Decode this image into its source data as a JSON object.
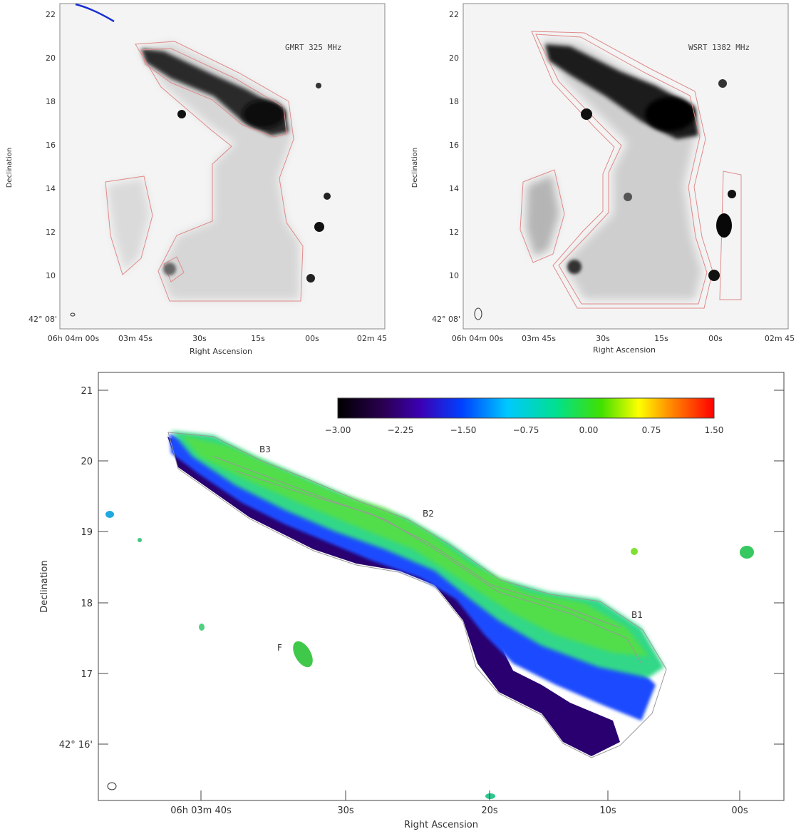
{
  "panels": {
    "gmrt": {
      "label": "GMRT 325 MHz",
      "ylabel": "Declination",
      "xlabel": "Right Ascension",
      "y_ticks": [
        "22",
        "20",
        "18",
        "16",
        "14",
        "12",
        "10"
      ],
      "y_origin": "42° 08'",
      "x_ticks": [
        "06h 04m 00s",
        "03m 45s",
        "30s",
        "15s",
        "00s",
        "02m 45"
      ]
    },
    "wsrt": {
      "label": "WSRT 1382 MHz",
      "ylabel": "Declination",
      "xlabel": "Right Ascension",
      "y_ticks": [
        "22",
        "20",
        "18",
        "16",
        "14",
        "12",
        "10"
      ],
      "y_origin": "42° 08'",
      "x_ticks": [
        "06h 04m 00s",
        "03m 45s",
        "30s",
        "15s",
        "00s",
        "02m 45"
      ]
    },
    "spectral": {
      "ylabel": "Declination",
      "xlabel": "Right Ascension",
      "y_ticks": [
        "21",
        "20",
        "19",
        "18",
        "17"
      ],
      "y_origin": "42° 16'",
      "x_ticks": [
        "06h 03m 40s",
        "30s",
        "20s",
        "10s",
        "00s"
      ],
      "colorbar_ticks": [
        "−3.00",
        "−2.25",
        "−1.50",
        "−0.75",
        "0.00",
        "0.75",
        "1.50"
      ],
      "region_labels": [
        "B3",
        "B2",
        "B1",
        "F"
      ]
    }
  },
  "chart_data": {
    "type": "heatmap",
    "colorbar": {
      "min": -3.0,
      "max": 1.5,
      "ticks": [
        -3.0,
        -2.25,
        -1.5,
        -0.75,
        0.0,
        0.75,
        1.5
      ]
    }
  }
}
